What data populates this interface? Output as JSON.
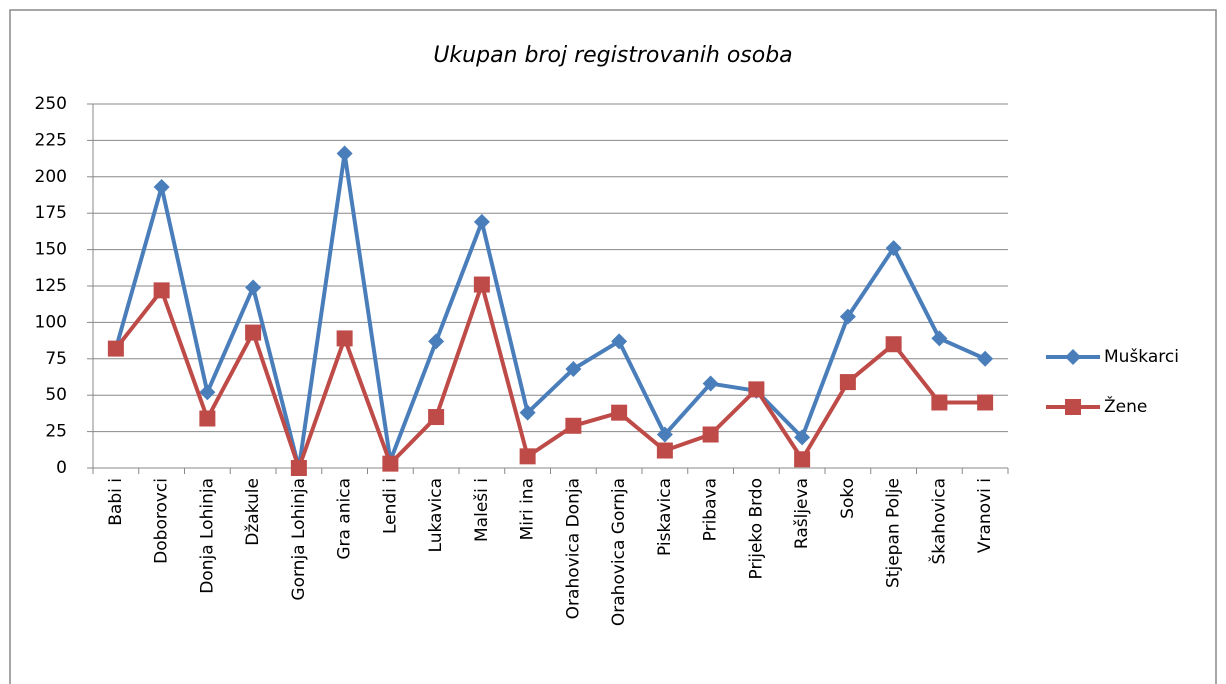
{
  "chart_data": {
    "type": "line",
    "title": "Ukupan broj registrovanih osoba",
    "categories": [
      "Babi  i",
      "Doborovci",
      "Donja Lohinja",
      "Džakule",
      "Gornja Lohinja",
      "Gra  anica",
      "Lendi  i",
      "Lukavica",
      "Maleši  i",
      "Miri  ina",
      "Orahovica Donja",
      "Orahovica Gornja",
      "Piskavica",
      "Pribava",
      "Prijeko Brdo",
      "Rašljeva",
      "Soko",
      "Stjepan Polje",
      "Škahovica",
      "Vranovi  i"
    ],
    "series": [
      {
        "name": "Muškarci",
        "color": "#4a7ebb",
        "marker": "diamond",
        "values": [
          82,
          193,
          52,
          124,
          0,
          216,
          5,
          87,
          169,
          38,
          68,
          87,
          23,
          58,
          53,
          21,
          104,
          151,
          89,
          75
        ]
      },
      {
        "name": "Žene",
        "color": "#be4b48",
        "marker": "square",
        "values": [
          82,
          122,
          34,
          93,
          0,
          89,
          3,
          35,
          126,
          8,
          29,
          38,
          12,
          23,
          54,
          6,
          59,
          85,
          45,
          45
        ]
      }
    ],
    "ylim": [
      0,
      250
    ],
    "yticks": [
      0,
      25,
      50,
      75,
      100,
      125,
      150,
      175,
      200,
      225,
      250
    ],
    "grid": true,
    "legend": "right"
  }
}
